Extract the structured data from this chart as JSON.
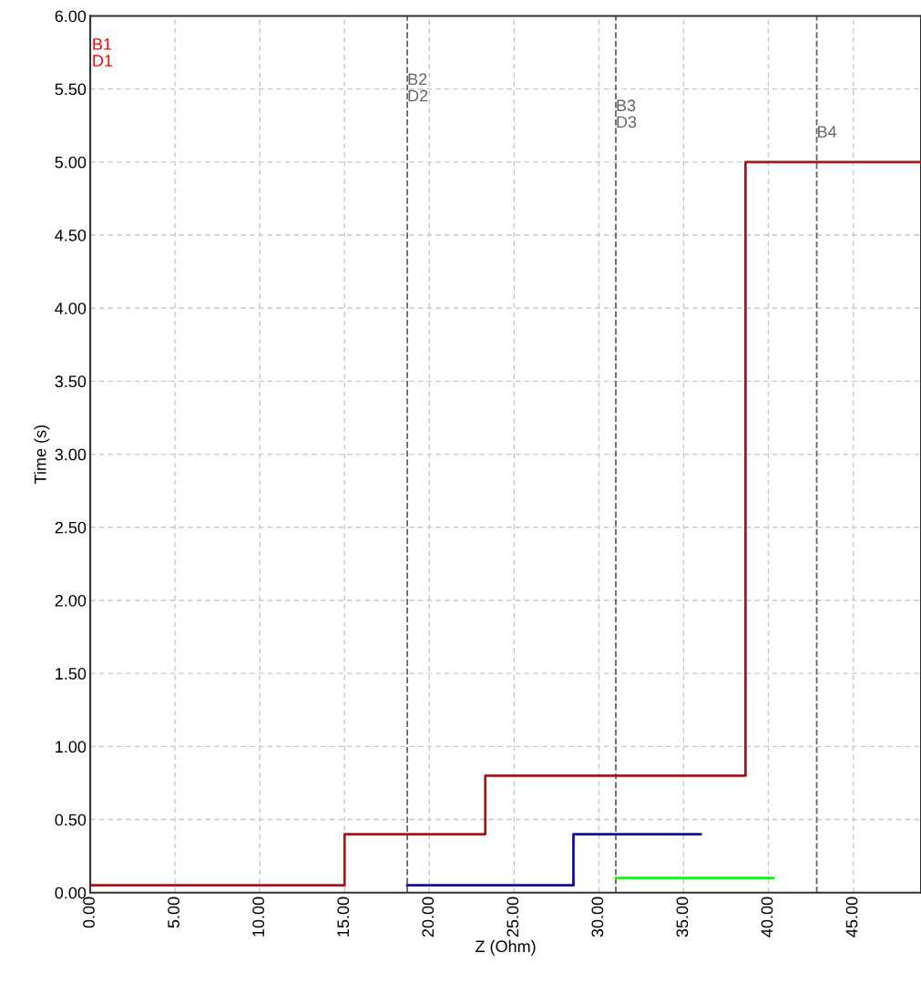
{
  "chart_data": {
    "type": "step",
    "xlabel": "Z (Ohm)",
    "ylabel": "Time (s)",
    "series": [
      {
        "color": "#a01818",
        "x": [
          0,
          15,
          23.3,
          38.65,
          49
        ],
        "values": [
          0.05,
          0.4,
          0.8,
          5,
          5
        ]
      },
      {
        "color": "#101090",
        "x": [
          18.7,
          28.5,
          36.0
        ],
        "values": [
          0.05,
          0.4,
          0.4
        ]
      },
      {
        "color": "#20ee20",
        "x": [
          31.0,
          40.3
        ],
        "values": [
          0.1,
          0.1
        ]
      }
    ],
    "ref_lines": [
      {
        "axis": "x",
        "value": 18.7,
        "label": "B2\nD2",
        "color": "#666666",
        "line_style": "dashed"
      },
      {
        "axis": "x",
        "value": 31.0,
        "label": "B3\nD3",
        "color": "#666666",
        "line_style": "dashed"
      },
      {
        "axis": "x",
        "value": 42.85,
        "label": "B4",
        "color": "#666666",
        "line_style": "dashed"
      }
    ],
    "annotations": [
      "B1\nD1"
    ],
    "xlim": [
      0,
      49
    ],
    "ylim": [
      0,
      6
    ],
    "xticks": [
      {
        "value": 0,
        "label": "0.00"
      },
      {
        "value": 5,
        "label": "5.00"
      },
      {
        "value": 10,
        "label": "10.00"
      },
      {
        "value": 15,
        "label": "15.00"
      },
      {
        "value": 20,
        "label": "20.00"
      },
      {
        "value": 25,
        "label": "25.00"
      },
      {
        "value": 30,
        "label": "30.00"
      },
      {
        "value": 35,
        "label": "35.00"
      },
      {
        "value": 40,
        "label": "40.00"
      },
      {
        "value": 45,
        "label": "45.00"
      }
    ],
    "yticks": [
      {
        "value": 0,
        "label": "0.00"
      },
      {
        "value": 0.5,
        "label": "0.50"
      },
      {
        "value": 1,
        "label": "1.00"
      },
      {
        "value": 1.5,
        "label": "1.50"
      },
      {
        "value": 2,
        "label": "2.00"
      },
      {
        "value": 2.5,
        "label": "2.50"
      },
      {
        "value": 3,
        "label": "3.00"
      },
      {
        "value": 3.5,
        "label": "3.50"
      },
      {
        "value": 4,
        "label": "4.00"
      },
      {
        "value": 4.5,
        "label": "4.50"
      },
      {
        "value": 5,
        "label": "5.00"
      },
      {
        "value": 5.5,
        "label": "5.50"
      },
      {
        "value": 6,
        "label": "6.00"
      }
    ],
    "grid": true,
    "line_style": "solid",
    "marker": "none"
  }
}
